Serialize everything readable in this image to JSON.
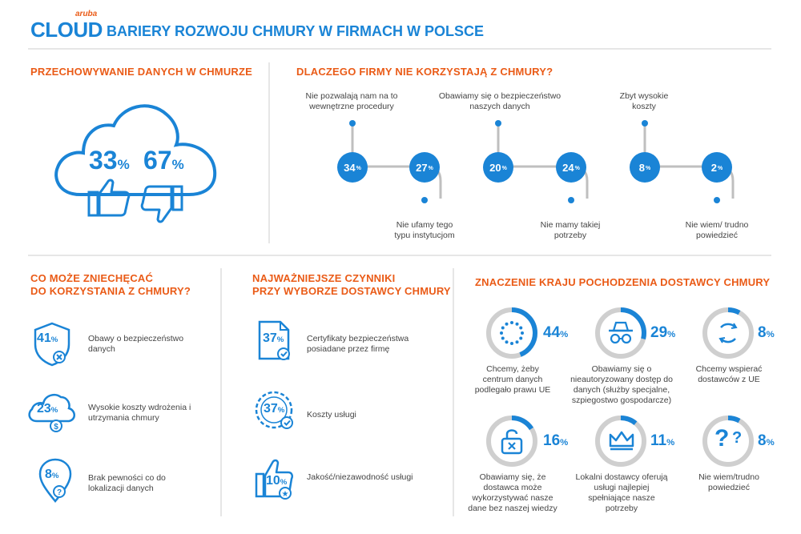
{
  "header": {
    "logo_small": "aruba",
    "logo_main": "CLOUD",
    "title": "BARIERY ROZWOJU CHMURY W FIRMACH W POLSCE"
  },
  "storage": {
    "title": "PRZECHOWYWANIE DANYCH W CHMURZE",
    "yes_value": "33",
    "no_value": "67",
    "unit": "%"
  },
  "why_not": {
    "title": "DLACZEGO FIRMY NIE KORZYSTAJĄ Z CHMURY?",
    "items": [
      {
        "value": "34",
        "label": "Nie pozwalają nam na to wewnętrzne procedury"
      },
      {
        "value": "27",
        "label": "Nie ufamy tego typu instytucjom"
      },
      {
        "value": "20",
        "label": "Obawiamy się o bezpieczeństwo naszych danych"
      },
      {
        "value": "24",
        "label": "Nie mamy takiej potrzeby"
      },
      {
        "value": "8",
        "label": "Zbyt wysokie koszty"
      },
      {
        "value": "2",
        "label": "Nie wiem/ trudno powiedzieć"
      }
    ],
    "unit": "%"
  },
  "discourage": {
    "title_line1": "CO MOŻE ZNIECHĘCAĆ",
    "title_line2": "DO KORZYSTANIA Z CHMURY?",
    "items": [
      {
        "value": "41",
        "icon": "shield-icon",
        "label": "Obawy o bezpieczeństwo danych"
      },
      {
        "value": "23",
        "icon": "cloud-dollar-icon",
        "label": "Wysokie koszty wdrożenia i utrzymania chmury"
      },
      {
        "value": "8",
        "icon": "location-question-icon",
        "label": "Brak pewności co do lokalizacji danych"
      }
    ]
  },
  "factors": {
    "title_line1": "NAJWAŻNIEJSZE CZYNNIKI",
    "title_line2": "PRZY WYBORZE DOSTAWCY CHMURY",
    "items": [
      {
        "value": "37",
        "icon": "certificate-icon",
        "label": "Certyfikaty bezpieczeństwa posiadane przez firmę"
      },
      {
        "value": "37",
        "icon": "coin-icon",
        "label": "Koszty usługi"
      },
      {
        "value": "10",
        "icon": "thumbs-up-star-icon",
        "label": "Jakość/niezawodność usługi"
      }
    ]
  },
  "origin": {
    "title": "ZNACZENIE KRAJU POCHODZENIA DOSTAWCY CHMURY",
    "items": [
      {
        "value": "44",
        "fraction": 0.44,
        "icon": "eu-flag-icon",
        "label": "Chcemy, żeby centrum danych podlegało prawu UE"
      },
      {
        "value": "29",
        "fraction": 0.29,
        "icon": "spy-icon",
        "label": "Obawiamy się o nieautoryzowany dostęp do danych (służby specjalne, szpiegostwo gospodarcze)"
      },
      {
        "value": "8",
        "fraction": 0.08,
        "icon": "cycle-arrows-icon",
        "label": "Chcemy wspierać dostawców z UE"
      },
      {
        "value": "16",
        "fraction": 0.16,
        "icon": "lock-open-icon",
        "label": "Obawiamy się, że dostawca może wykorzystywać nasze dane bez naszej wiedzy"
      },
      {
        "value": "11",
        "fraction": 0.11,
        "icon": "crown-icon",
        "label": "Lokalni dostawcy oferują usługi najlepiej spełniające nasze potrzeby"
      },
      {
        "value": "8",
        "fraction": 0.08,
        "icon": "question-icon",
        "label": "Nie wiem/trudno powiedzieć"
      }
    ]
  },
  "colors": {
    "blue": "#1a84d6",
    "orange": "#ea5b17",
    "ring_gray": "#cfcfcf"
  }
}
